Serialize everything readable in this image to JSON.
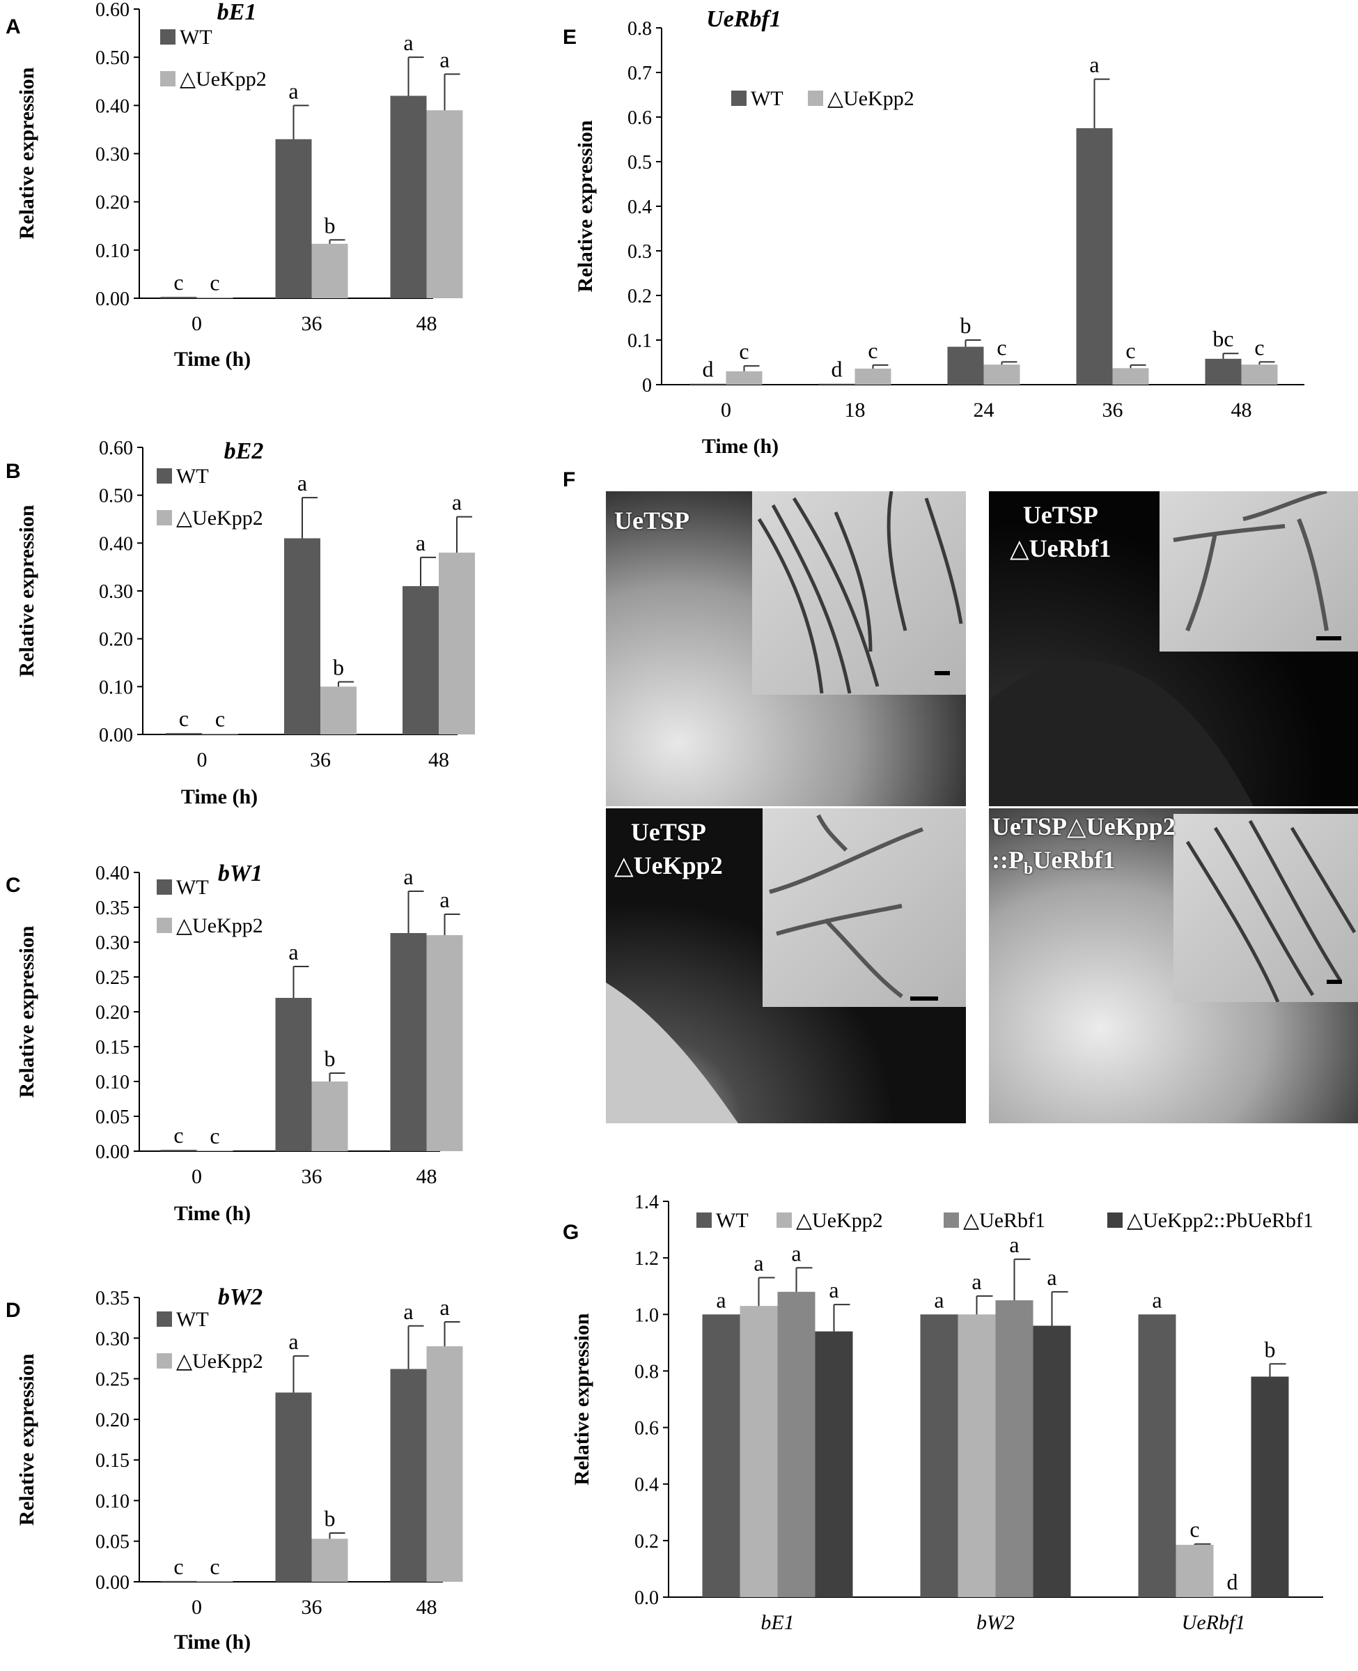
{
  "colors": {
    "wt": "#5a5a5a",
    "ko": "#b3b3b3",
    "rbf": "#878787",
    "comp": "#404040",
    "err": "#333333"
  },
  "chart_data": [
    {
      "id": "A",
      "type": "bar",
      "title": "bE1",
      "xlabel": "Time (h)",
      "ylabel": "Relative expression",
      "categories": [
        "0",
        "36",
        "48"
      ],
      "ylim": [
        0,
        0.6
      ],
      "yticks": [
        "0.00",
        "0.10",
        "0.20",
        "0.30",
        "0.40",
        "0.50",
        "0.60"
      ],
      "legend": "top-left",
      "series": [
        {
          "name": "WT",
          "values": [
            0.003,
            0.33,
            0.42
          ],
          "errors": [
            0,
            0.07,
            0.08
          ],
          "letters": [
            "c",
            "a",
            "a"
          ]
        },
        {
          "name": "△UeKpp2",
          "values": [
            0.002,
            0.113,
            0.39
          ],
          "errors": [
            0,
            0.008,
            0.075
          ],
          "letters": [
            "c",
            "b",
            "a"
          ]
        }
      ]
    },
    {
      "id": "B",
      "type": "bar",
      "title": "bE2",
      "xlabel": "Time (h)",
      "ylabel": "Relative expression",
      "categories": [
        "0",
        "36",
        "48"
      ],
      "ylim": [
        0,
        0.6
      ],
      "yticks": [
        "0.00",
        "0.10",
        "0.20",
        "0.30",
        "0.40",
        "0.50",
        "0.60"
      ],
      "legend": "top-left",
      "series": [
        {
          "name": "WT",
          "values": [
            0.003,
            0.41,
            0.31
          ],
          "errors": [
            0,
            0.085,
            0.06
          ],
          "letters": [
            "c",
            "a",
            "a"
          ]
        },
        {
          "name": "△UeKpp2",
          "values": [
            0.002,
            0.1,
            0.38
          ],
          "errors": [
            0,
            0.01,
            0.075
          ],
          "letters": [
            "c",
            "b",
            "a"
          ]
        }
      ]
    },
    {
      "id": "C",
      "type": "bar",
      "title": "bW1",
      "xlabel": "Time (h)",
      "ylabel": "Relative expression",
      "categories": [
        "0",
        "36",
        "48"
      ],
      "ylim": [
        0,
        0.4
      ],
      "yticks": [
        "0.00",
        "0.05",
        "0.10",
        "0.15",
        "0.20",
        "0.25",
        "0.30",
        "0.35",
        "0.40"
      ],
      "legend": "top-left",
      "series": [
        {
          "name": "WT",
          "values": [
            0.002,
            0.22,
            0.313
          ],
          "errors": [
            0,
            0.045,
            0.06
          ],
          "letters": [
            "c",
            "a",
            "a"
          ]
        },
        {
          "name": "△UeKpp2",
          "values": [
            0.001,
            0.1,
            0.31
          ],
          "errors": [
            0,
            0.012,
            0.03
          ],
          "letters": [
            "c",
            "b",
            "a"
          ]
        }
      ]
    },
    {
      "id": "D",
      "type": "bar",
      "title": "bW2",
      "xlabel": "Time (h)",
      "ylabel": "Relative expression",
      "categories": [
        "0",
        "36",
        "48"
      ],
      "ylim": [
        0,
        0.35
      ],
      "yticks": [
        "0.00",
        "0.05",
        "0.10",
        "0.15",
        "0.20",
        "0.25",
        "0.30",
        "0.35"
      ],
      "legend": "top-left",
      "series": [
        {
          "name": "WT",
          "values": [
            0.001,
            0.233,
            0.262
          ],
          "errors": [
            0,
            0.045,
            0.053
          ],
          "letters": [
            "c",
            "a",
            "a"
          ]
        },
        {
          "name": "△UeKpp2",
          "values": [
            0.001,
            0.053,
            0.29
          ],
          "errors": [
            0,
            0.007,
            0.03
          ],
          "letters": [
            "c",
            "b",
            "a"
          ]
        }
      ]
    },
    {
      "id": "E",
      "type": "bar",
      "title": "UeRbf1",
      "xlabel": "Time (h)",
      "ylabel": "Relative expression",
      "categories": [
        "0",
        "18",
        "24",
        "36",
        "48"
      ],
      "ylim": [
        0,
        0.8
      ],
      "yticks": [
        "0",
        "0.1",
        "0.2",
        "0.3",
        "0.4",
        "0.5",
        "0.6",
        "0.7",
        "0.8"
      ],
      "legend": "top-left",
      "series": [
        {
          "name": "WT",
          "values": [
            0.002,
            0.002,
            0.085,
            0.575,
            0.058
          ],
          "errors": [
            0,
            0,
            0.015,
            0.11,
            0.012
          ],
          "letters": [
            "d",
            "d",
            "b",
            "a",
            "bc"
          ]
        },
        {
          "name": "△UeKpp2",
          "values": [
            0.03,
            0.036,
            0.045,
            0.037,
            0.045
          ],
          "errors": [
            0.012,
            0.008,
            0.006,
            0.007,
            0.006
          ],
          "letters": [
            "c",
            "c",
            "c",
            "c",
            "c"
          ]
        }
      ]
    },
    {
      "id": "G",
      "type": "bar",
      "title": "",
      "xlabel": "",
      "ylabel": "Relative expression",
      "categories": [
        "bE1",
        "bW2",
        "UeRbf1"
      ],
      "ylim": [
        0,
        1.4
      ],
      "yticks": [
        "0.0",
        "0.2",
        "0.4",
        "0.6",
        "0.8",
        "1.0",
        "1.2",
        "1.4"
      ],
      "legend": "top",
      "series": [
        {
          "name": "WT",
          "values": [
            1.0,
            1.0,
            1.0
          ],
          "errors": [
            0,
            0,
            0
          ],
          "letters": [
            "a",
            "a",
            "a"
          ]
        },
        {
          "name": "△UeKpp2",
          "values": [
            1.03,
            1.0,
            0.185
          ],
          "errors": [
            0.1,
            0.065,
            0.003
          ],
          "letters": [
            "a",
            "a",
            "c"
          ]
        },
        {
          "name": "△UeRbf1",
          "values": [
            1.08,
            1.05,
            0.003
          ],
          "errors": [
            0.085,
            0.145,
            0
          ],
          "letters": [
            "a",
            "a",
            "d"
          ]
        },
        {
          "name": "△UeKpp2::PbUeRbf1",
          "values": [
            0.94,
            0.96,
            0.78
          ],
          "errors": [
            0.095,
            0.12,
            0.045
          ],
          "letters": [
            "a",
            "a",
            "b"
          ]
        }
      ]
    }
  ],
  "panel_letters": [
    "A",
    "B",
    "C",
    "D",
    "E",
    "F",
    "G"
  ],
  "micrographs": [
    {
      "label_lines": [
        "UeTSP"
      ]
    },
    {
      "label_lines": [
        "UeTSP",
        "△UeRbf1"
      ]
    },
    {
      "label_lines": [
        "UeTSP",
        "△UeKpp2"
      ]
    },
    {
      "label_lines": [
        "UeTSP△UeKpp2",
        "::P",
        "b",
        "UeRbf1"
      ]
    }
  ]
}
